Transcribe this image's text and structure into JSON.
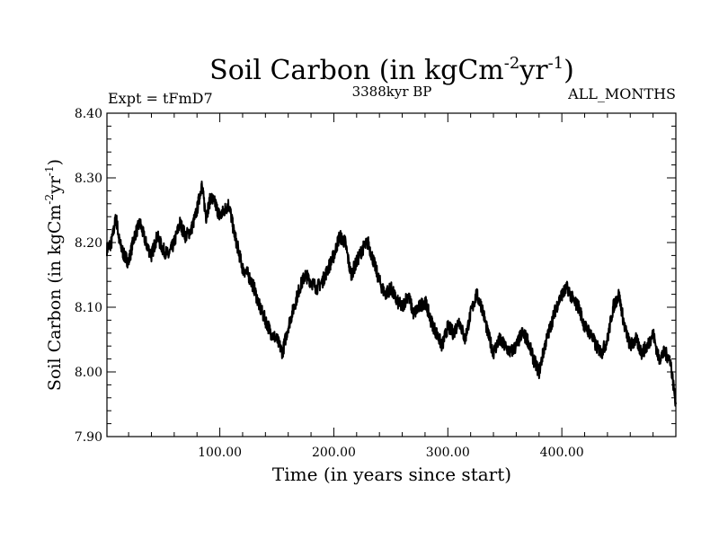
{
  "chart_data": {
    "type": "line",
    "title": {
      "main": "Soil Carbon (in kgCm",
      "sup1": "-2",
      "mid": "yr",
      "sup2": "-1",
      "end": ")"
    },
    "subtitle_left": "Expt = tFmD7",
    "subtitle_center": "3388kyr BP",
    "subtitle_right": "ALL_MONTHS",
    "xlabel": "Time (in years since start)",
    "ylabel": {
      "main": "Soil Carbon (in kgCm",
      "sup1": "-2",
      "mid": "yr",
      "sup2": "-1",
      "end": ")"
    },
    "xlim": [
      1,
      500
    ],
    "ylim": [
      7.9,
      8.4
    ],
    "xticks": [
      100,
      200,
      300,
      400
    ],
    "xtick_labels": [
      "100.00",
      "200.00",
      "300.00",
      "400.00"
    ],
    "yticks": [
      7.9,
      8.0,
      8.1,
      8.2,
      8.3,
      8.4
    ],
    "ytick_labels": [
      "7.90",
      "8.00",
      "8.10",
      "8.20",
      "8.30",
      "8.40"
    ],
    "series": [
      {
        "name": "Soil Carbon",
        "color": "#000000",
        "x": [
          1,
          5,
          9,
          12,
          16,
          20,
          25,
          30,
          35,
          40,
          45,
          50,
          55,
          60,
          65,
          70,
          75,
          80,
          84,
          88,
          92,
          96,
          100,
          104,
          108,
          112,
          116,
          120,
          125,
          130,
          135,
          140,
          145,
          150,
          155,
          160,
          165,
          170,
          175,
          180,
          185,
          190,
          195,
          200,
          205,
          210,
          215,
          220,
          225,
          230,
          235,
          240,
          245,
          250,
          255,
          260,
          265,
          270,
          275,
          280,
          285,
          290,
          295,
          300,
          305,
          310,
          315,
          320,
          325,
          330,
          335,
          340,
          345,
          350,
          355,
          360,
          365,
          370,
          375,
          380,
          385,
          390,
          395,
          400,
          405,
          410,
          415,
          420,
          425,
          430,
          435,
          440,
          445,
          450,
          455,
          460,
          465,
          470,
          475,
          480,
          485,
          490,
          495,
          500
        ],
        "y": [
          8.19,
          8.2,
          8.24,
          8.2,
          8.18,
          8.17,
          8.21,
          8.23,
          8.2,
          8.18,
          8.21,
          8.19,
          8.18,
          8.2,
          8.23,
          8.21,
          8.22,
          8.25,
          8.29,
          8.24,
          8.27,
          8.26,
          8.24,
          8.25,
          8.26,
          8.22,
          8.19,
          8.16,
          8.15,
          8.13,
          8.1,
          8.08,
          8.06,
          8.05,
          8.03,
          8.07,
          8.1,
          8.13,
          8.15,
          8.14,
          8.13,
          8.14,
          8.16,
          8.18,
          8.21,
          8.2,
          8.15,
          8.17,
          8.19,
          8.2,
          8.17,
          8.14,
          8.12,
          8.13,
          8.11,
          8.1,
          8.12,
          8.09,
          8.1,
          8.11,
          8.08,
          8.06,
          8.04,
          8.07,
          8.06,
          8.08,
          8.05,
          8.09,
          8.12,
          8.1,
          8.06,
          8.03,
          8.05,
          8.04,
          8.03,
          8.04,
          8.06,
          8.05,
          8.02,
          8.0,
          8.04,
          8.07,
          8.1,
          8.12,
          8.13,
          8.11,
          8.1,
          8.07,
          8.06,
          8.04,
          8.03,
          8.05,
          8.1,
          8.12,
          8.07,
          8.04,
          8.05,
          8.03,
          8.04,
          8.06,
          8.02,
          8.03,
          8.02,
          7.95
        ]
      }
    ]
  }
}
